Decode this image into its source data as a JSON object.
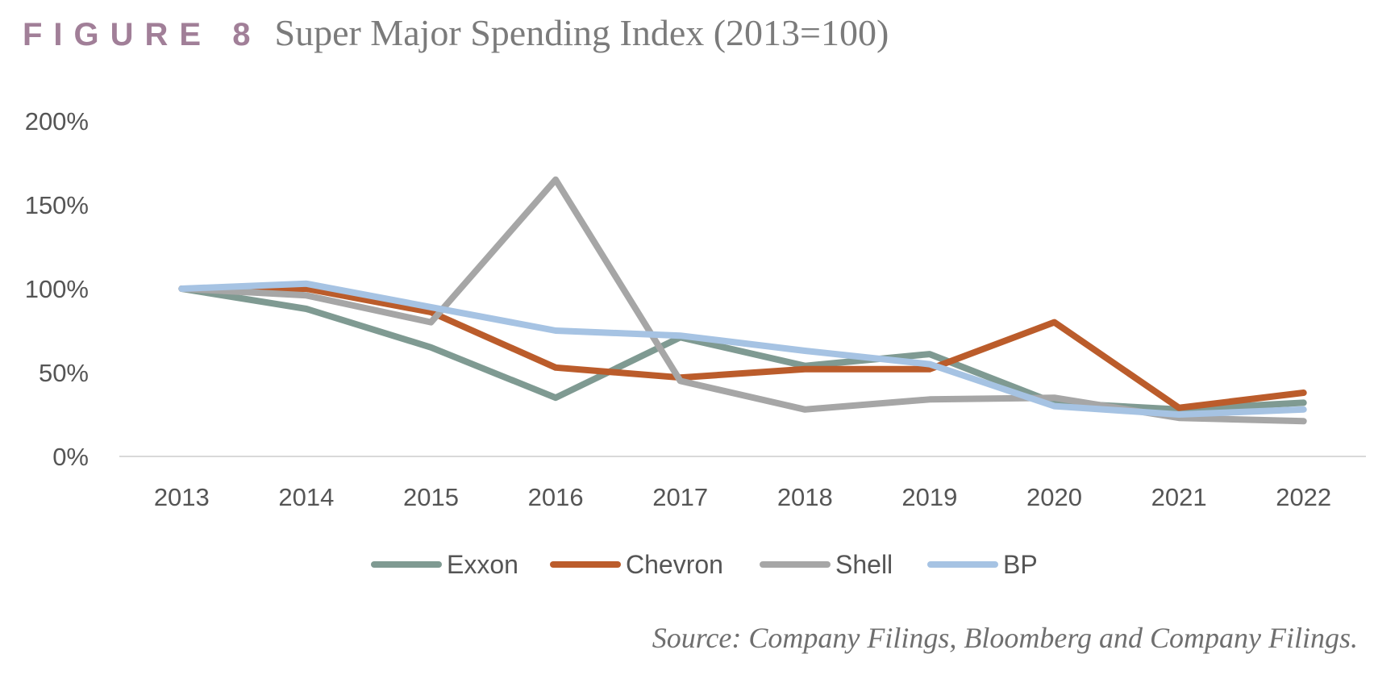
{
  "header": {
    "figure_label": "FIGURE 8",
    "title": "Super Major Spending Index (2013=100)"
  },
  "source": "Source: Company Filings, Bloomberg and Company Filings.",
  "chart_data": {
    "type": "line",
    "title": "Super Major Spending Index (2013=100)",
    "xlabel": "",
    "ylabel": "",
    "categories": [
      "2013",
      "2014",
      "2015",
      "2016",
      "2017",
      "2018",
      "2019",
      "2020",
      "2021",
      "2022"
    ],
    "ylim": [
      0,
      200
    ],
    "yticks": [
      0,
      50,
      100,
      150,
      200
    ],
    "ytick_labels": [
      "0%",
      "50%",
      "100%",
      "150%",
      "200%"
    ],
    "grid": false,
    "legend_position": "bottom",
    "series": [
      {
        "name": "Exxon",
        "color": "#7f9a92",
        "values": [
          100,
          88,
          65,
          35,
          71,
          54,
          61,
          32,
          28,
          32
        ]
      },
      {
        "name": "Chevron",
        "color": "#bb5c2b",
        "values": [
          100,
          100,
          86,
          53,
          47,
          52,
          52,
          80,
          29,
          38
        ]
      },
      {
        "name": "Shell",
        "color": "#a6a6a6",
        "values": [
          100,
          96,
          80,
          165,
          45,
          28,
          34,
          35,
          23,
          21
        ]
      },
      {
        "name": "BP",
        "color": "#a6c3e3",
        "values": [
          100,
          103,
          89,
          75,
          72,
          63,
          55,
          30,
          25,
          28
        ]
      }
    ]
  }
}
